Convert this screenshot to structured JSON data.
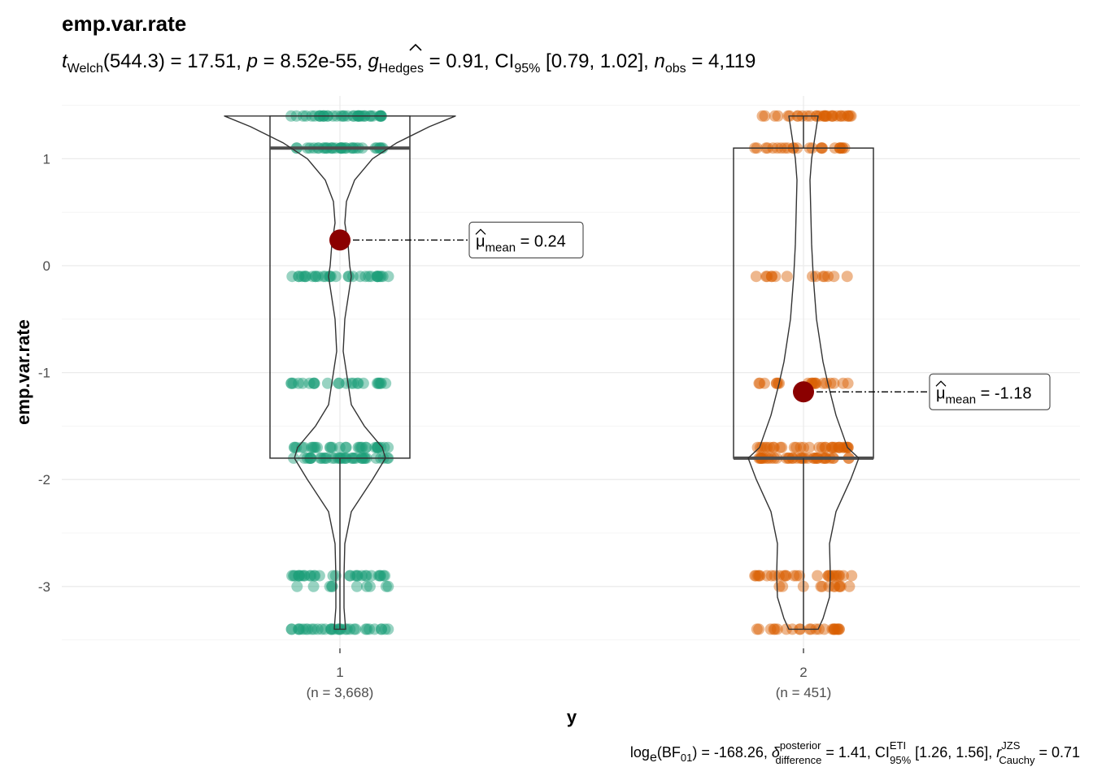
{
  "chart_data": {
    "type": "violin-box-scatter",
    "title": "emp.var.rate",
    "subtitle": {
      "test": "t",
      "test_sub": "Welch",
      "df": "(544.3)",
      "stat": " = 17.51, ",
      "p_sym": "p",
      "p_val": " = 8.52e-55, ",
      "es_sym": "g",
      "es_sub": "Hedges",
      "es_val": " = 0.91, CI",
      "ci_sub": "95%",
      "ci_val": " [0.79, 1.02], ",
      "n_sym": "n",
      "n_sub": "obs",
      "n_val": " = 4,119"
    },
    "caption": {
      "log": "log",
      "log_sub": "e",
      "bf": "(BF",
      "bf_sub": "01",
      "bf_val": ") = -168.26, ",
      "delta": "δ",
      "delta_sup": "posterior",
      "delta_sub": "difference",
      "delta_val": " = 1.41, CI",
      "ci_sup": "ETI",
      "ci_sub": "95%",
      "ci_val": " [1.26, 1.56], ",
      "r": "r",
      "r_sup": "JZS",
      "r_sub": "Cauchy",
      "r_val": " = 0.71"
    },
    "xlabel": "y",
    "ylabel": "emp.var.rate",
    "ylim": [
      -3.5,
      1.5
    ],
    "yticks": [
      1,
      0,
      -1,
      -2,
      -3
    ],
    "ytick_labels": [
      "1",
      "0",
      "-1",
      "-2",
      "-3"
    ],
    "groups": [
      {
        "category": "1",
        "n_label": "(n = 3,668)",
        "color": "#1b9e77",
        "mean": 0.24,
        "mean_label_mu": "μ",
        "mean_label_sub": "mean",
        "mean_label_val": " = 0.24",
        "box": {
          "q1": -1.8,
          "median": 1.1,
          "q3": 1.4,
          "whisker_low": -3.4,
          "whisker_high": 1.4
        },
        "point_levels": [
          1.4,
          1.1,
          -0.1,
          -1.1,
          -1.7,
          -1.8,
          -2.9,
          -3.0,
          -3.4
        ],
        "point_counts": [
          38,
          34,
          32,
          24,
          30,
          36,
          30,
          10,
          34
        ]
      },
      {
        "category": "2",
        "n_label": "(n = 451)",
        "color": "#d95f02",
        "mean": -1.18,
        "mean_label_mu": "μ",
        "mean_label_sub": "mean",
        "mean_label_val": " = -1.18",
        "box": {
          "q1": -1.8,
          "median": -1.8,
          "q3": 1.1,
          "whisker_low": -3.4,
          "whisker_high": 1.4
        },
        "point_levels": [
          1.4,
          1.1,
          -0.1,
          -1.1,
          -1.7,
          -1.8,
          -2.9,
          -3.0,
          -3.4
        ],
        "point_counts": [
          30,
          24,
          14,
          20,
          32,
          36,
          26,
          12,
          24
        ]
      }
    ],
    "mean_point_color": "#8b0000",
    "grid": true
  }
}
